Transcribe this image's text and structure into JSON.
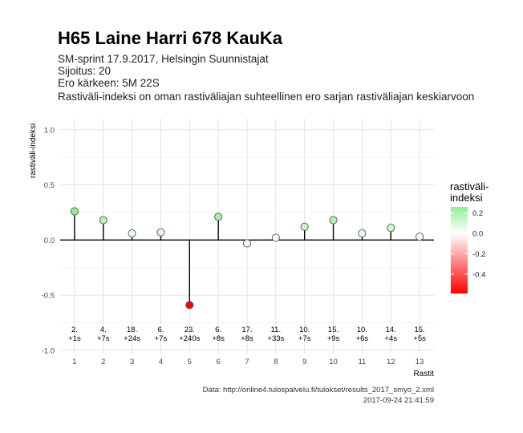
{
  "title": "H65 Laine Harri 678 KauKa",
  "subtitle_lines": [
    "SM-sprint 17.9.2017, Helsingin Suunnistajat",
    "Sijoitus: 20",
    "Ero kärkeen: 5M 22S",
    "Rastiväli-indeksi on oman rastiväliajan suhteellinen ero sarjan rastiväliajan keskiarvoon"
  ],
  "caption_lines": [
    "Data: http://online4.tulospalvelu.fi/tulokset/results_2017_smyo_2.xml",
    "2017-09-24 21:41:59"
  ],
  "chart_data": {
    "type": "scatter",
    "title": "H65 Laine Harri 678 KauKa",
    "xlabel": "Rastit",
    "ylabel": "rastiväli-indeksi",
    "x": [
      1,
      2,
      3,
      4,
      5,
      6,
      7,
      8,
      9,
      10,
      11,
      12,
      13
    ],
    "y": [
      0.26,
      0.18,
      0.06,
      0.07,
      -0.59,
      0.21,
      -0.03,
      0.02,
      0.12,
      0.18,
      0.06,
      0.11,
      0.03
    ],
    "point_labels_line1": [
      "2.",
      "4.",
      "18.",
      "6.",
      "23.",
      "6.",
      "17.",
      "11.",
      "10.",
      "15.",
      "10.",
      "14.",
      "15."
    ],
    "point_labels_line2": [
      "+1s",
      "+7s",
      "+24s",
      "+7s",
      "+240s",
      "+8s",
      "+8s",
      "+33s",
      "+7s",
      "+9s",
      "+6s",
      "+4s",
      "+5s"
    ],
    "x_ticks": [
      "1",
      "2",
      "3",
      "4",
      "5",
      "6",
      "7",
      "8",
      "9",
      "10",
      "11",
      "12",
      "13"
    ],
    "y_ticks": [
      1.0,
      0.5,
      0.0,
      -0.5,
      -1.0
    ],
    "y_tick_labels": [
      "1.0",
      "0.5",
      "0.0",
      "-0.5",
      "-1.0"
    ],
    "xlim": [
      0.5,
      13.5
    ],
    "ylim": [
      -1.03,
      1.1
    ],
    "grid": true,
    "baseline": 0,
    "legend": {
      "title_lines": [
        "rastiväli-",
        "indeksi"
      ],
      "position": "right",
      "ticks": [
        0.2,
        0.0,
        -0.2,
        -0.4
      ],
      "tick_labels": [
        "0.2",
        "0.0",
        "-0.2",
        "-0.4"
      ],
      "range": [
        -0.59,
        0.26
      ]
    },
    "colors": {
      "positive": "#90ee90",
      "zero": "#ffffff",
      "negative": "#ff0000",
      "grid_major": "#dcdcdc",
      "grid_minor": "#eeeeee",
      "stem": "#000000",
      "point_outline": "#555555"
    }
  }
}
